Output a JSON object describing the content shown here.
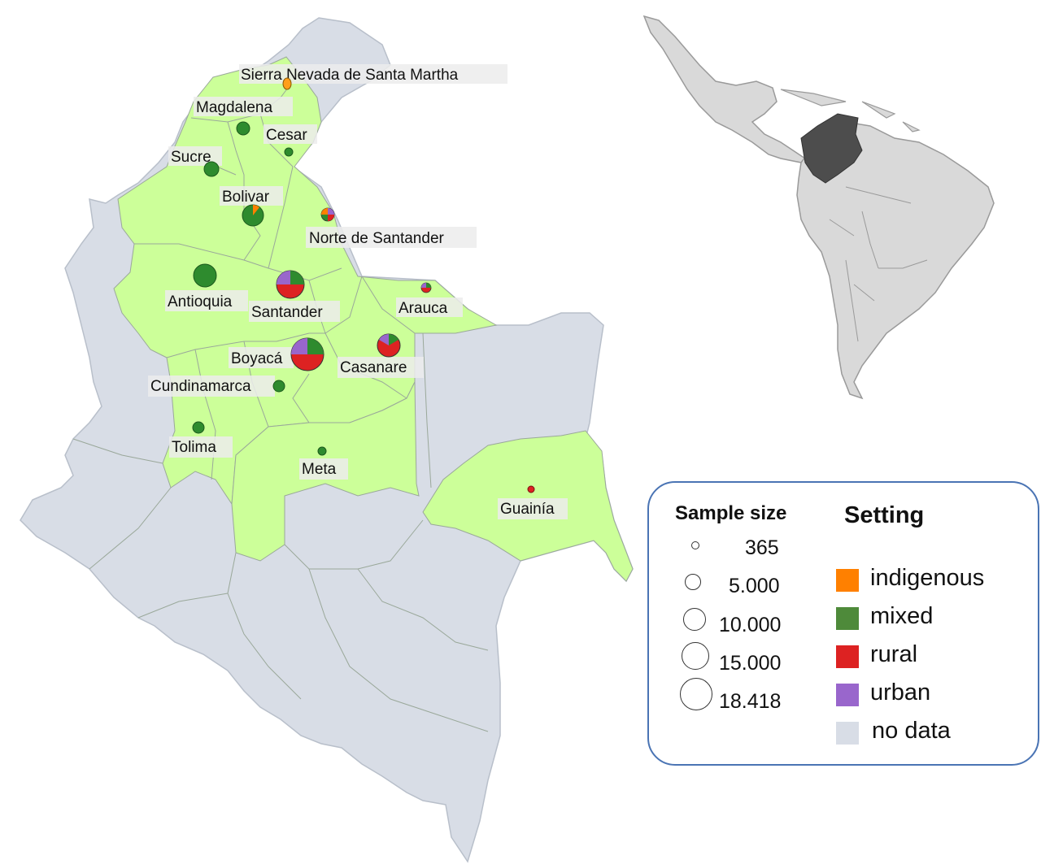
{
  "colors": {
    "indigenous": "#ff8000",
    "mixed": "#2e8b2e",
    "rural": "#dd2222",
    "urban": "#9966cc",
    "no_data": "#d8dde6",
    "studied": "#ccff99",
    "colombia_inset": "#4d4d4d",
    "continent": "#d9d9d9"
  },
  "departments": [
    {
      "name": "Sierra Nevada de Santa Martha",
      "setting": [
        "indigenous"
      ]
    },
    {
      "name": "Magdalena",
      "setting": [
        "mixed"
      ]
    },
    {
      "name": "Cesar",
      "setting": [
        "mixed"
      ]
    },
    {
      "name": "Sucre",
      "setting": [
        "mixed"
      ]
    },
    {
      "name": "Bolivar",
      "setting": [
        "mixed",
        "indigenous"
      ]
    },
    {
      "name": "Norte de Santander",
      "setting": [
        "mixed",
        "rural",
        "urban",
        "indigenous"
      ]
    },
    {
      "name": "Antioquia",
      "setting": [
        "mixed"
      ]
    },
    {
      "name": "Santander",
      "setting": [
        "mixed",
        "rural",
        "urban"
      ]
    },
    {
      "name": "Arauca",
      "setting": [
        "mixed",
        "rural",
        "urban"
      ]
    },
    {
      "name": "Boyacá",
      "setting": [
        "mixed",
        "rural",
        "urban"
      ]
    },
    {
      "name": "Casanare",
      "setting": [
        "mixed",
        "rural",
        "urban"
      ]
    },
    {
      "name": "Cundinamarca",
      "setting": [
        "mixed"
      ]
    },
    {
      "name": "Tolima",
      "setting": [
        "mixed"
      ]
    },
    {
      "name": "Meta",
      "setting": [
        "mixed"
      ]
    },
    {
      "name": "Guainía",
      "setting": [
        "rural"
      ]
    }
  ],
  "legend": {
    "sample_size_title": "Sample size",
    "sample_sizes": [
      "365",
      "5.000",
      "10.000",
      "15.000",
      "18.418"
    ],
    "setting_title": "Setting",
    "settings": [
      {
        "key": "indigenous",
        "label": "indigenous"
      },
      {
        "key": "mixed",
        "label": "mixed"
      },
      {
        "key": "rural",
        "label": "rural"
      },
      {
        "key": "urban",
        "label": "urban"
      },
      {
        "key": "no_data",
        "label": "no data"
      }
    ]
  }
}
